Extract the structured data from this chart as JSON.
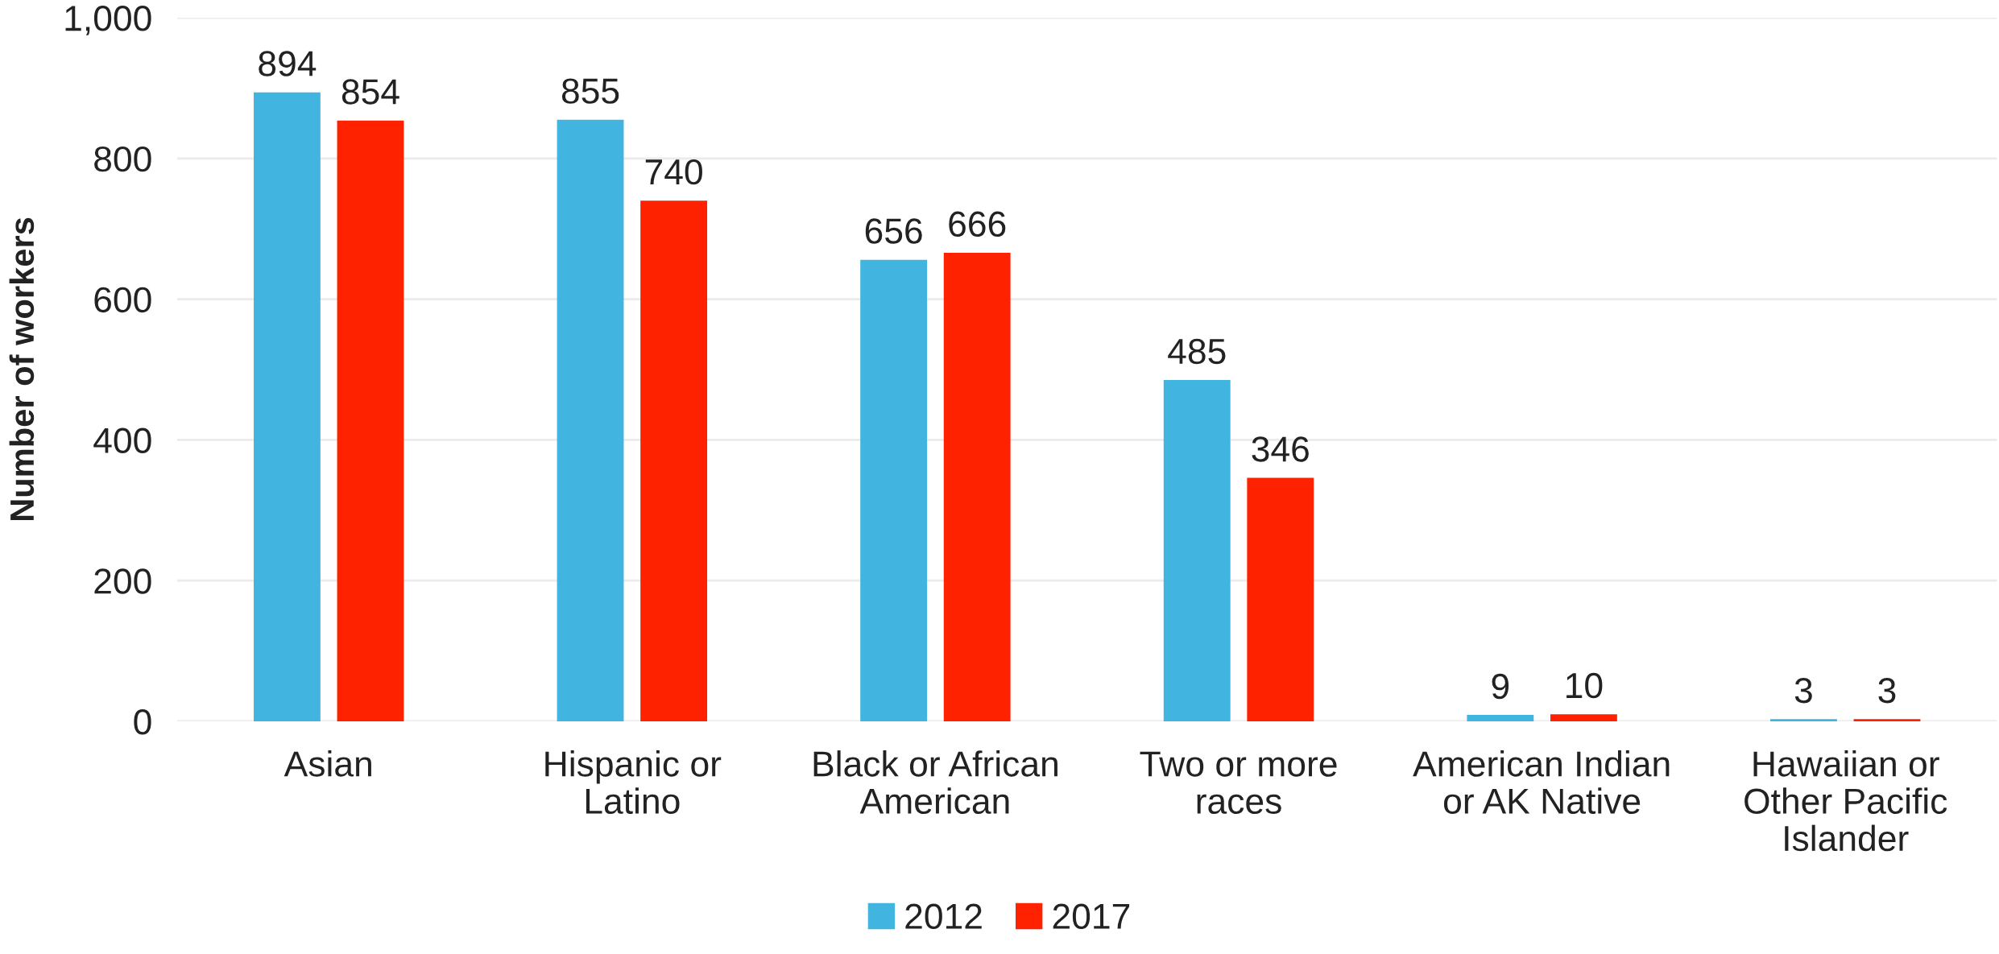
{
  "chart_data": {
    "type": "bar",
    "ylabel": "Number of workers",
    "categories": [
      "Asian",
      "Hispanic or\nLatino",
      "Black or African\nAmerican",
      "Two or more\nraces",
      "American Indian\nor AK Native",
      "Hawaiian or\nOther Pacific\nIslander"
    ],
    "series": [
      {
        "name": "2012",
        "color": "#41b4e0",
        "values": [
          894,
          855,
          656,
          485,
          9,
          3
        ]
      },
      {
        "name": "2017",
        "color": "#ff2200",
        "values": [
          854,
          740,
          666,
          346,
          10,
          3
        ]
      }
    ],
    "ylim": [
      0,
      1000
    ],
    "yticks": [
      0,
      200,
      400,
      600,
      800,
      {
        "value": 1000,
        "label": "1,000"
      }
    ],
    "grid": "y",
    "legend": "bottom",
    "data_labels": true
  }
}
